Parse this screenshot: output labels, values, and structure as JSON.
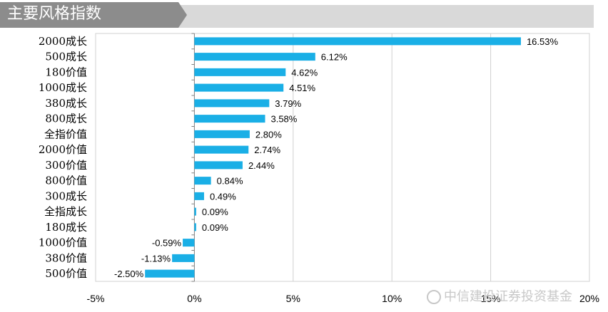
{
  "header": {
    "title": "主要风格指数"
  },
  "watermark": {
    "text": "中信建投证券投资基金"
  },
  "chart_data": {
    "type": "bar",
    "orientation": "horizontal",
    "title": "",
    "xlabel": "",
    "ylabel": "",
    "categories": [
      "2000成长",
      "500成长",
      "180价值",
      "1000成长",
      "380成长",
      "800成长",
      "全指价值",
      "2000价值",
      "300价值",
      "800价值",
      "300成长",
      "全指成长",
      "180成长",
      "1000价值",
      "380价值",
      "500价值"
    ],
    "values": [
      16.53,
      6.12,
      4.62,
      4.51,
      3.79,
      3.58,
      2.8,
      2.74,
      2.44,
      0.84,
      0.49,
      0.09,
      0.09,
      -0.59,
      -1.13,
      -2.5
    ],
    "value_labels": [
      "16.53%",
      "6.12%",
      "4.62%",
      "4.51%",
      "3.79%",
      "3.58%",
      "2.80%",
      "2.74%",
      "2.44%",
      "0.84%",
      "0.49%",
      "0.09%",
      "0.09%",
      "-0.59%",
      "-1.13%",
      "-2.50%"
    ],
    "xlim": [
      -5,
      20
    ],
    "xticks": [
      -5,
      0,
      5,
      10,
      15,
      20
    ],
    "xtick_labels": [
      "-5%",
      "0%",
      "5%",
      "10%",
      "15%",
      "20%"
    ],
    "grid": "vertical",
    "legend": "none",
    "bar_color": "#1aafe6"
  }
}
